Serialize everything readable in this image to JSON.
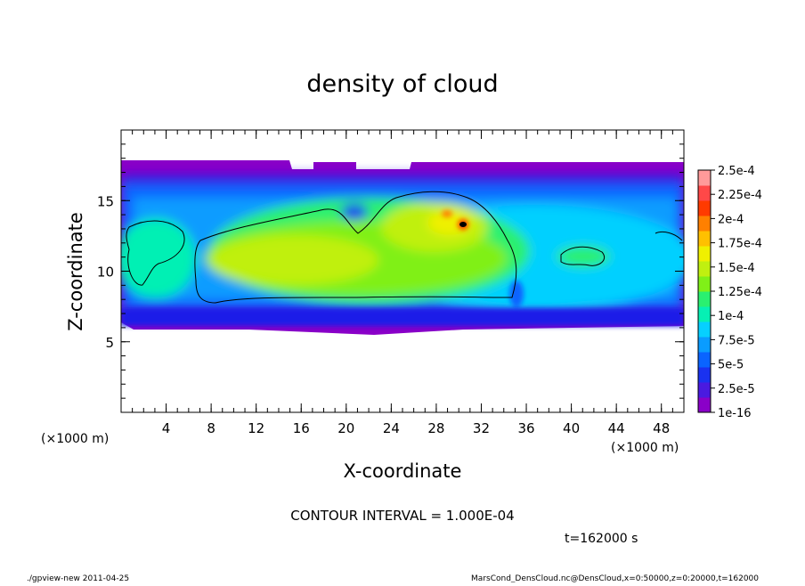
{
  "chart_data": {
    "type": "heatmap",
    "title": "density of cloud",
    "xlabel": "X-coordinate",
    "ylabel": "Z-coordinate",
    "x_unit_left": "(×1000 m)",
    "x_unit_right": "(×1000 m)",
    "xlim": [
      0,
      50
    ],
    "ylim": [
      0,
      20
    ],
    "x_ticks": [
      4,
      8,
      12,
      16,
      20,
      24,
      28,
      32,
      36,
      40,
      44,
      48
    ],
    "y_ticks": [
      5,
      10,
      15
    ],
    "colorbar": {
      "labels": [
        "1e-16",
        "2.5e-5",
        "5e-5",
        "7.5e-5",
        "1e-4",
        "1.25e-4",
        "1.5e-4",
        "1.75e-4",
        "2e-4",
        "2.25e-4",
        "2.5e-4"
      ],
      "colors": [
        "#8a00c8",
        "#4a1ae0",
        "#1a32f0",
        "#0a64ff",
        "#0a9cff",
        "#06d0ff",
        "#06f0b4",
        "#2af070",
        "#80f018",
        "#c0f010",
        "#f0f000",
        "#ffc000",
        "#ff8000",
        "#ff3a00",
        "#ff4848",
        "#ff9a9a"
      ]
    },
    "annotation_contour": "CONTOUR INTERVAL = 1.000E-04",
    "annotation_time": "t=162000 s"
  },
  "footer": {
    "left": "./gpview-new   2011-04-25",
    "right": "MarsCond_DensCloud.nc@DensCloud,x=0:50000,z=0:20000,t=162000"
  }
}
